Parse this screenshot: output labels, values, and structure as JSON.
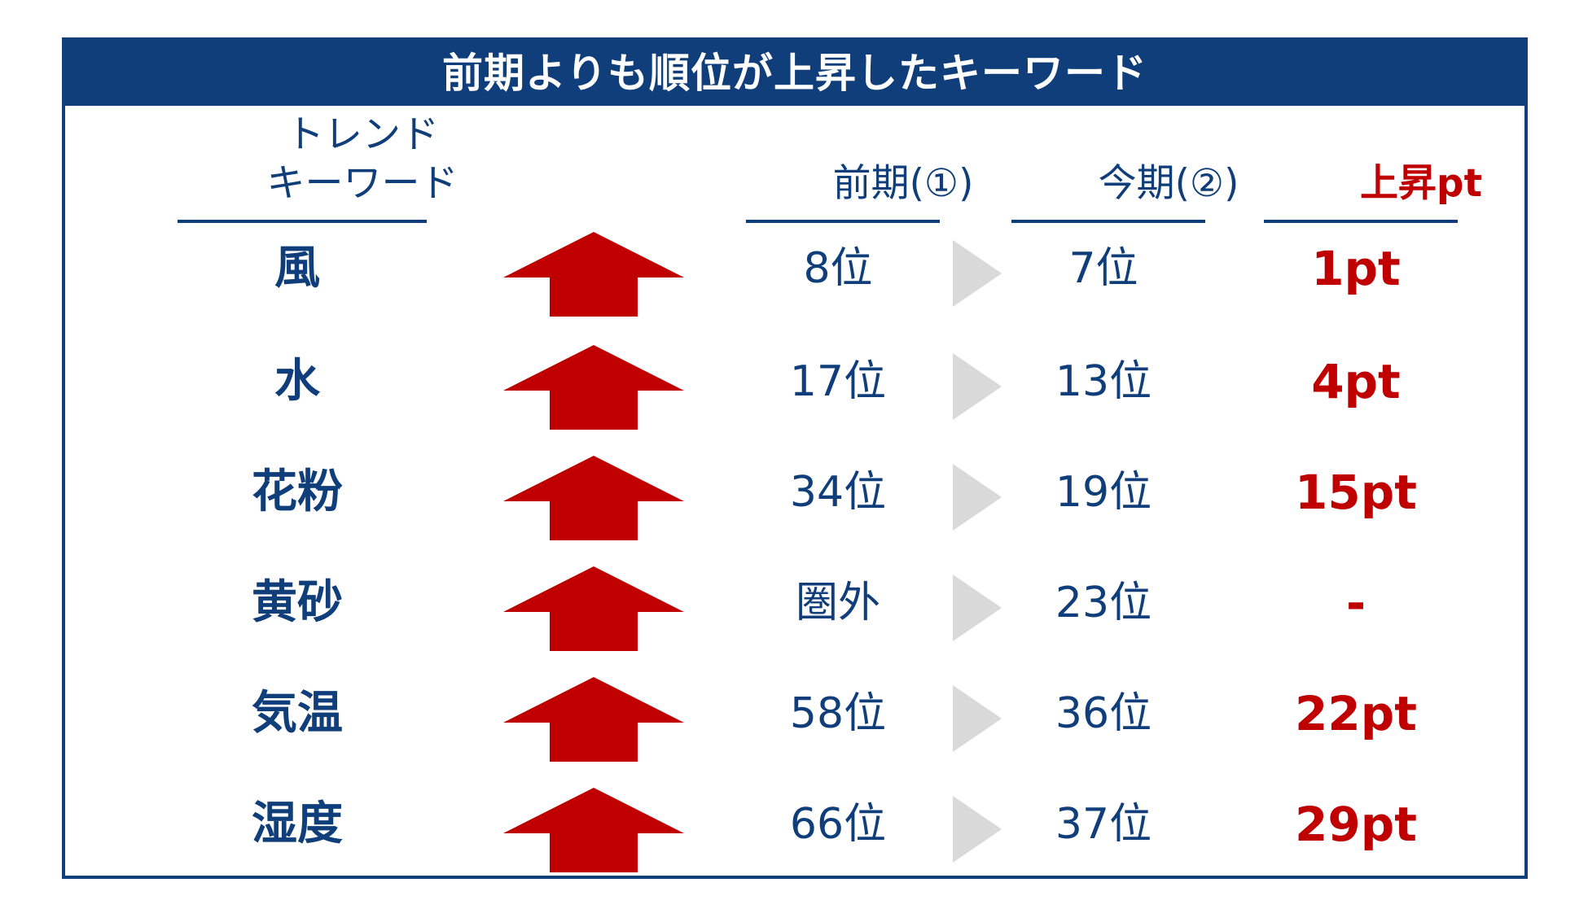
{
  "title": "前期よりも順位が上昇したキーワード",
  "headers": {
    "keyword_line1": "トレンド",
    "keyword_line2": "キーワード",
    "previous": "前期(①)",
    "current": "今期(②)",
    "rise": "上昇pt"
  },
  "rows": [
    {
      "keyword": "風",
      "previous": "8位",
      "current": "7位",
      "rise": "1pt"
    },
    {
      "keyword": "水",
      "previous": "17位",
      "current": "13位",
      "rise": "4pt"
    },
    {
      "keyword": "花粉",
      "previous": "34位",
      "current": "19位",
      "rise": "15pt"
    },
    {
      "keyword": "黄砂",
      "previous": "圏外",
      "current": "23位",
      "rise": "-"
    },
    {
      "keyword": "気温",
      "previous": "58位",
      "current": "36位",
      "rise": "22pt"
    },
    {
      "keyword": "湿度",
      "previous": "66位",
      "current": "37位",
      "rise": "29pt"
    }
  ],
  "icons": {
    "trend": "up-arrow-icon",
    "transition": "play-triangle-icon"
  },
  "colors": {
    "navy": "#0f3e7a",
    "red": "#c00000",
    "gray": "#d9d9d9"
  }
}
